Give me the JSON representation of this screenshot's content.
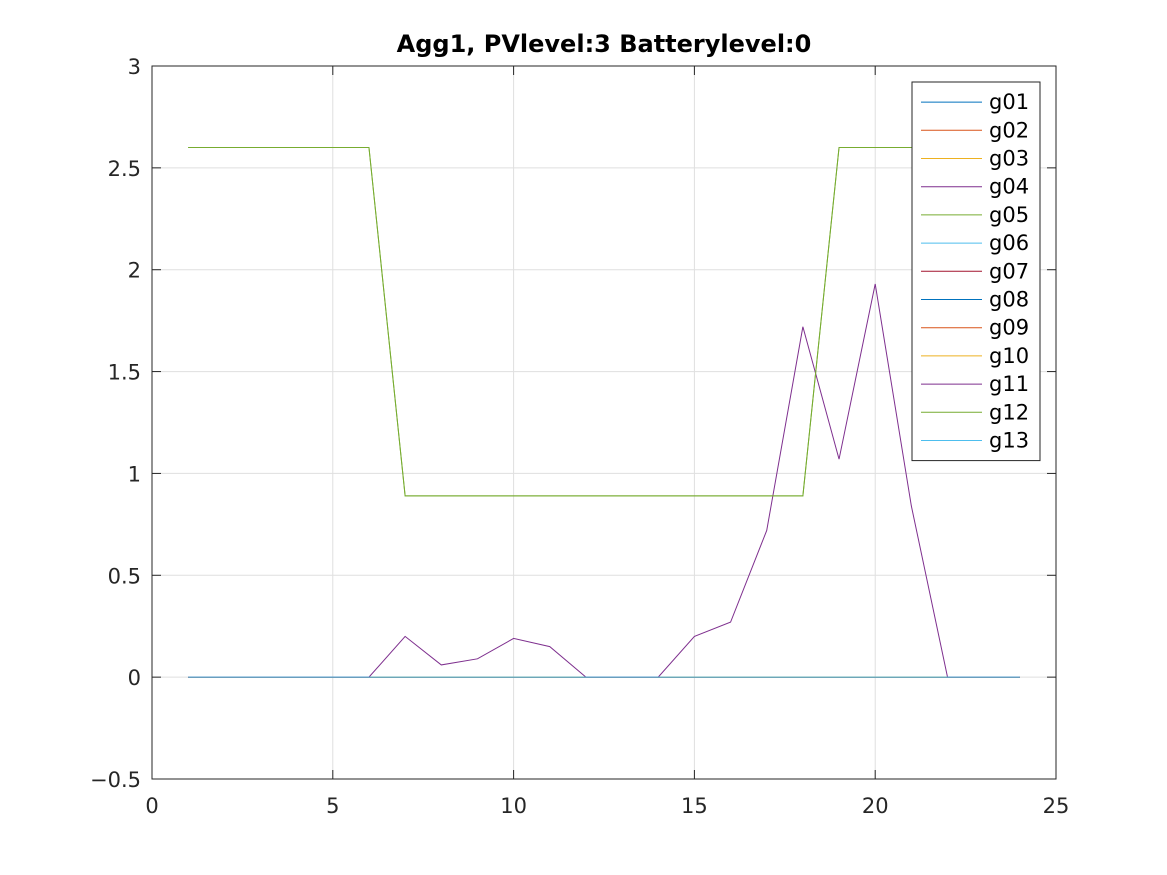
{
  "chart_data": {
    "type": "line",
    "title": "Agg1, PVlevel:3 Batterylevel:0",
    "xlabel": "",
    "ylabel": "",
    "xlim": [
      0,
      25
    ],
    "ylim": [
      -0.5,
      3
    ],
    "xticks": [
      0,
      5,
      10,
      15,
      20,
      25
    ],
    "xtick_labels": [
      "0",
      "5",
      "10",
      "15",
      "20",
      "25"
    ],
    "yticks": [
      -0.5,
      0,
      0.5,
      1,
      1.5,
      2,
      2.5,
      3
    ],
    "ytick_labels": [
      "−0.5",
      "0",
      "0.5",
      "1",
      "1.5",
      "2",
      "2.5",
      "3"
    ],
    "grid": true,
    "legend_position": "top-right",
    "x": [
      1,
      2,
      3,
      4,
      5,
      6,
      7,
      8,
      9,
      10,
      11,
      12,
      13,
      14,
      15,
      16,
      17,
      18,
      19,
      20,
      21,
      22,
      23,
      24
    ],
    "series": [
      {
        "name": "g01",
        "color": "#0072BD",
        "values": [
          0,
          0,
          0,
          0,
          0,
          0,
          0,
          0,
          0,
          0,
          0,
          0,
          0,
          0,
          0,
          0,
          0,
          0,
          0,
          0,
          0,
          0,
          0,
          0
        ]
      },
      {
        "name": "g02",
        "color": "#D95319",
        "values": [
          0,
          0,
          0,
          0,
          0,
          0,
          0,
          0,
          0,
          0,
          0,
          0,
          0,
          0,
          0,
          0,
          0,
          0,
          0,
          0,
          0,
          0,
          0,
          0
        ]
      },
      {
        "name": "g03",
        "color": "#EDB120",
        "values": [
          0,
          0,
          0,
          0,
          0,
          0,
          0,
          0,
          0,
          0,
          0,
          0,
          0,
          0,
          0,
          0,
          0,
          0,
          0,
          0,
          0,
          0,
          0,
          0
        ]
      },
      {
        "name": "g04",
        "color": "#7E2F8E",
        "values": [
          0,
          0,
          0,
          0,
          0,
          0,
          0,
          0,
          0,
          0,
          0,
          0,
          0,
          0,
          0,
          0,
          0,
          0,
          0,
          0,
          0,
          0,
          0,
          0
        ]
      },
      {
        "name": "g05",
        "color": "#77AC30",
        "values": [
          2.6,
          2.6,
          2.6,
          2.6,
          2.6,
          2.6,
          0.89,
          0.89,
          0.89,
          0.89,
          0.89,
          0.89,
          0.89,
          0.89,
          0.89,
          0.89,
          0.89,
          0.89,
          2.6,
          2.6,
          2.6,
          2.6,
          2.6,
          2.6
        ]
      },
      {
        "name": "g06",
        "color": "#4DBEEE",
        "values": [
          0,
          0,
          0,
          0,
          0,
          0,
          0,
          0,
          0,
          0,
          0,
          0,
          0,
          0,
          0,
          0,
          0,
          0,
          0,
          0,
          0,
          0,
          0,
          0
        ]
      },
      {
        "name": "g07",
        "color": "#A2142F",
        "values": [
          0,
          0,
          0,
          0,
          0,
          0,
          0,
          0,
          0,
          0,
          0,
          0,
          0,
          0,
          0,
          0,
          0,
          0,
          0,
          0,
          0,
          0,
          0,
          0
        ]
      },
      {
        "name": "g08",
        "color": "#0072BD",
        "values": [
          0,
          0,
          0,
          0,
          0,
          0,
          0,
          0,
          0,
          0,
          0,
          0,
          0,
          0,
          0,
          0,
          0,
          0,
          0,
          0,
          0,
          0,
          0,
          0
        ]
      },
      {
        "name": "g09",
        "color": "#D95319",
        "values": [
          0,
          0,
          0,
          0,
          0,
          0,
          0,
          0,
          0,
          0,
          0,
          0,
          0,
          0,
          0,
          0,
          0,
          0,
          0,
          0,
          0,
          0,
          0,
          0
        ]
      },
      {
        "name": "g10",
        "color": "#EDB120",
        "values": [
          0,
          0,
          0,
          0,
          0,
          0,
          0,
          0,
          0,
          0,
          0,
          0,
          0,
          0,
          0,
          0,
          0,
          0,
          0,
          0,
          0,
          0,
          0,
          0
        ]
      },
      {
        "name": "g11",
        "color": "#7E2F8E",
        "values": [
          0,
          0,
          0,
          0,
          0,
          0,
          0.2,
          0.06,
          0.09,
          0.19,
          0.15,
          0,
          0,
          0,
          0.2,
          0.27,
          0.72,
          1.72,
          1.07,
          1.93,
          0.84,
          0,
          0,
          0
        ]
      },
      {
        "name": "g12",
        "color": "#77AC30",
        "values": [
          2.6,
          2.6,
          2.6,
          2.6,
          2.6,
          2.6,
          0.89,
          0.89,
          0.89,
          0.89,
          0.89,
          0.89,
          0.89,
          0.89,
          0.89,
          0.89,
          0.89,
          0.89,
          2.6,
          2.6,
          2.6,
          2.6,
          2.6,
          2.6
        ]
      },
      {
        "name": "g13",
        "color": "#4DBEEE",
        "values": [
          0,
          0,
          0,
          0,
          0,
          0,
          0,
          0,
          0,
          0,
          0,
          0,
          0,
          0,
          0,
          0,
          0,
          0,
          0,
          0,
          0,
          0,
          0,
          0
        ]
      }
    ]
  }
}
